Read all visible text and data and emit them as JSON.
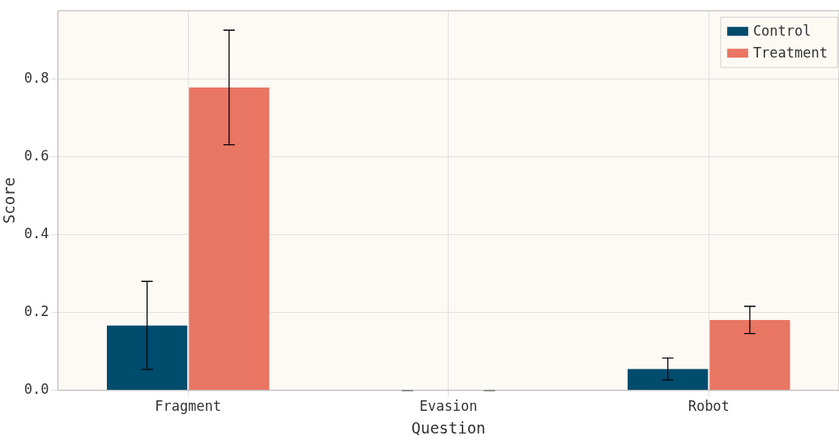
{
  "chart_data": {
    "type": "bar",
    "xlabel": "Question",
    "ylabel": "Score",
    "categories": [
      "Fragment",
      "Evasion",
      "Robot"
    ],
    "series": [
      {
        "name": "Control",
        "color": "#004c6d",
        "values": [
          0.167,
          0,
          0.055
        ],
        "errors": [
          0.113,
          0,
          0.028
        ]
      },
      {
        "name": "Treatment",
        "color": "#e97563",
        "values": [
          0.778,
          0,
          0.181
        ],
        "errors": [
          0.147,
          0,
          0.035
        ]
      }
    ],
    "ylim": [
      0,
      0.975
    ],
    "yticks": [
      {
        "value": 0,
        "label": "0.0"
      },
      {
        "value": 0.2,
        "label": "0.2"
      },
      {
        "value": 0.4,
        "label": "0.4"
      },
      {
        "value": 0.6,
        "label": "0.6"
      },
      {
        "value": 0.8,
        "label": "0.8"
      }
    ],
    "grid": true,
    "legend": "top right"
  }
}
